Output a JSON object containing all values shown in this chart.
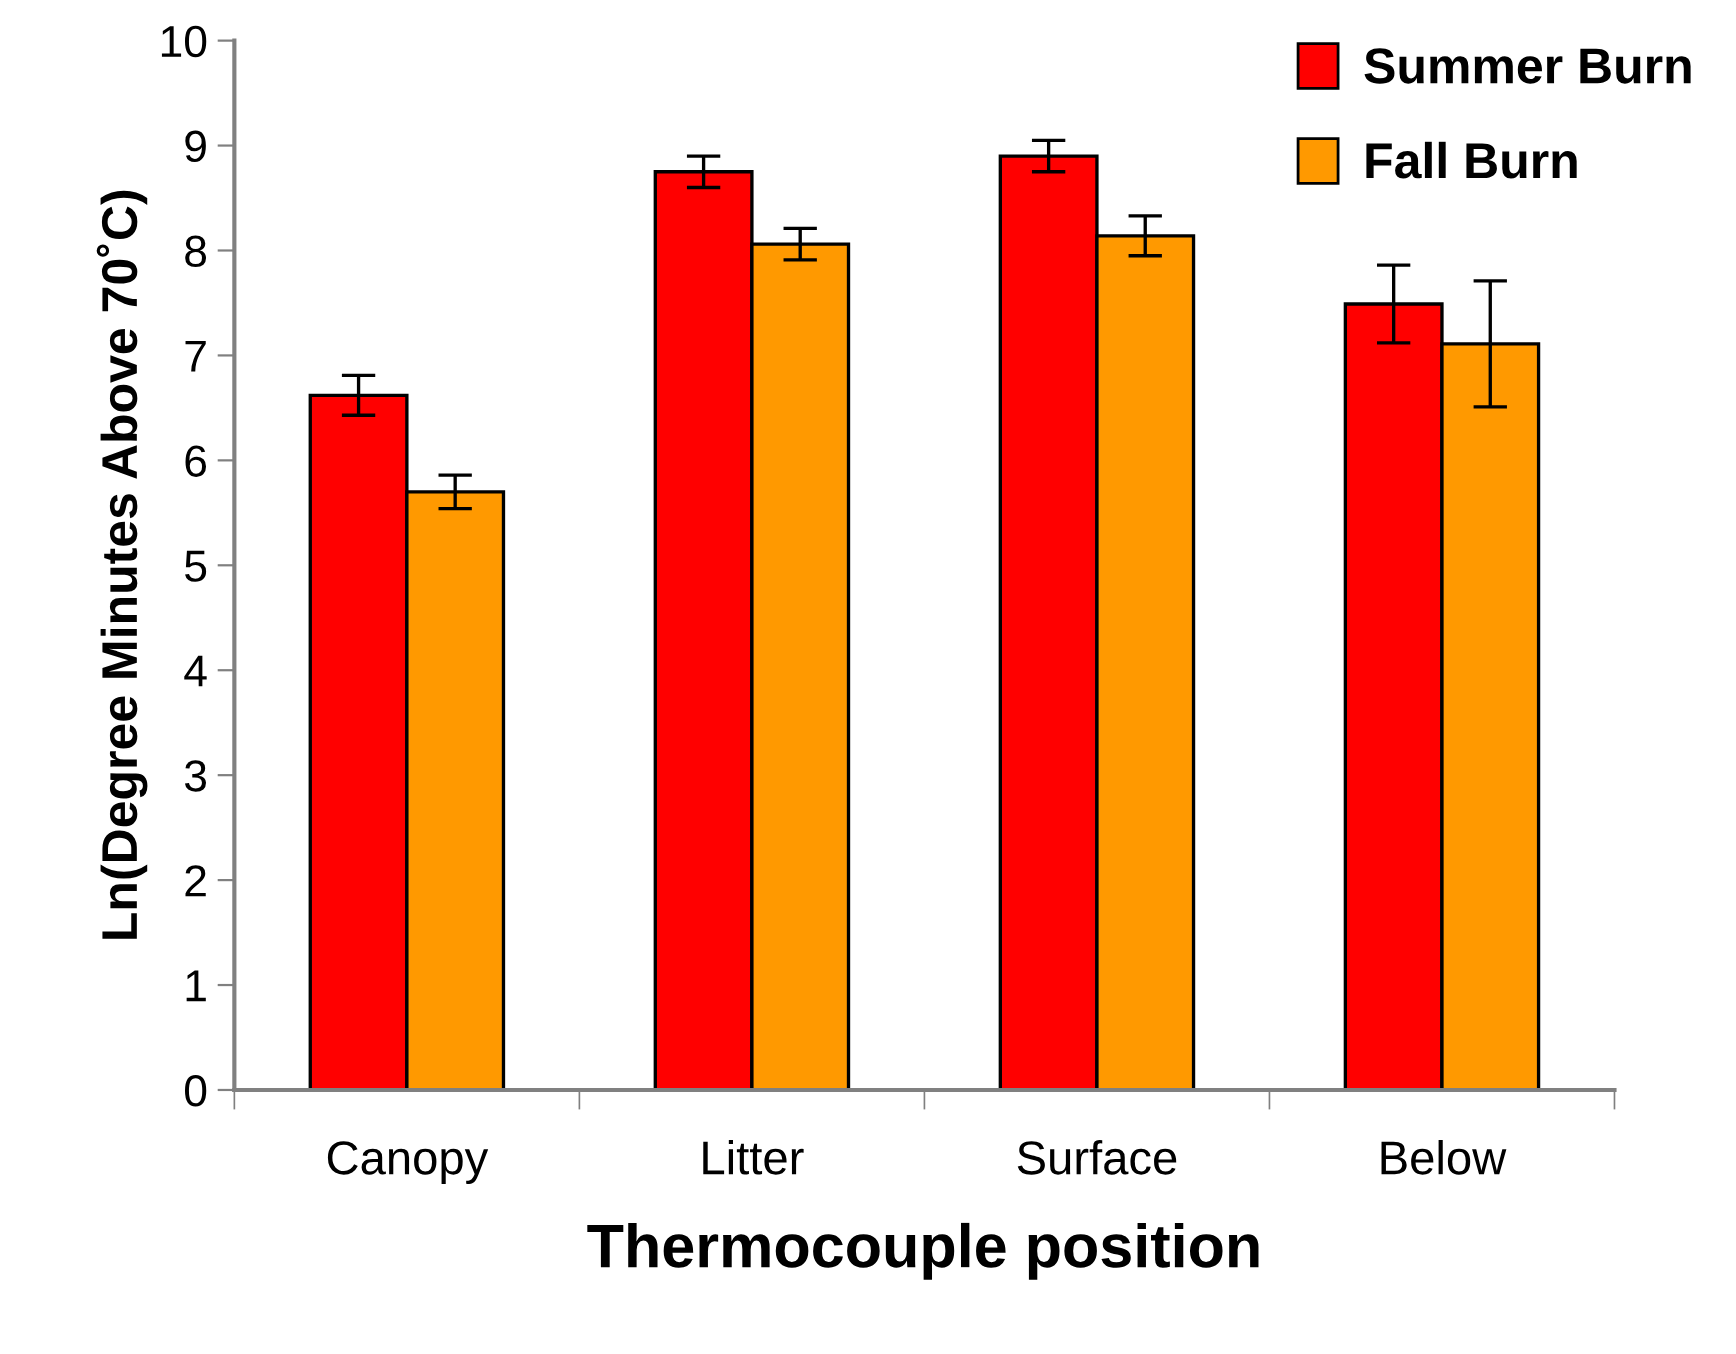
{
  "chart_data": {
    "type": "bar",
    "xlabel": "Thermocouple position",
    "ylabel": "Ln(Degree Minutes Above 70˚C)",
    "categories": [
      "Canopy",
      "Litter",
      "Surface",
      "Below"
    ],
    "series": [
      {
        "name": "Summer Burn",
        "color": "#ff0000",
        "values": [
          6.62,
          8.75,
          8.9,
          7.49
        ],
        "errors": [
          0.19,
          0.15,
          0.15,
          0.37
        ]
      },
      {
        "name": "Fall Burn",
        "color": "#ff9900",
        "values": [
          5.7,
          8.06,
          8.14,
          7.11
        ],
        "errors": [
          0.16,
          0.15,
          0.19,
          0.6
        ]
      }
    ],
    "ylim": [
      0,
      10
    ],
    "yticks": [
      0,
      1,
      2,
      3,
      4,
      5,
      6,
      7,
      8,
      9,
      10
    ],
    "grid": false,
    "legend": "top right"
  }
}
